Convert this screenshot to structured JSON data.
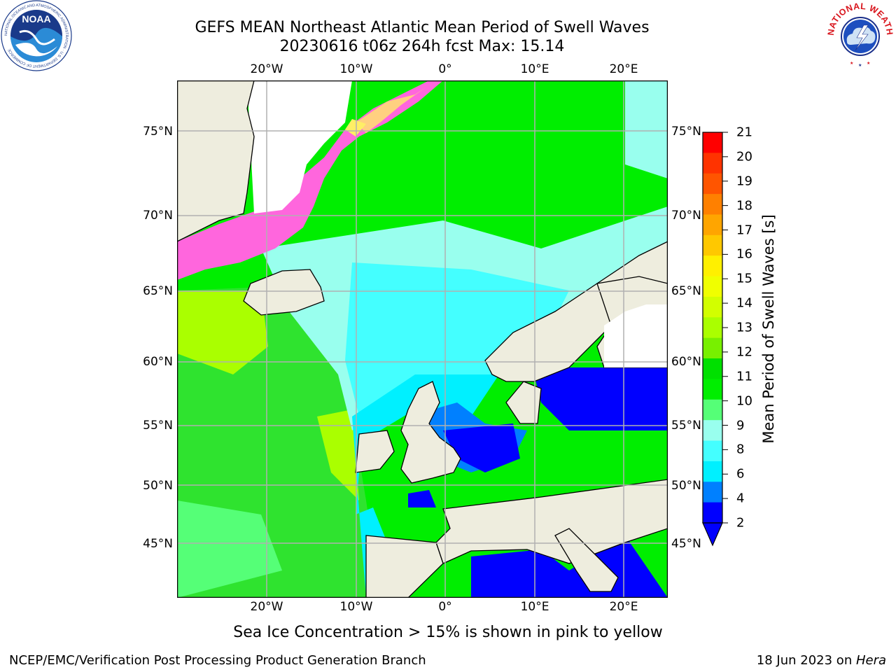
{
  "title": {
    "line1": "GEFS MEAN Northeast Atlantic Mean Period of Swell Waves",
    "line2": "20230616 t06z 264h fcst   Max: 15.14"
  },
  "map": {
    "lon_labels": [
      "20°W",
      "10°W",
      "0°",
      "10°E",
      "20°E"
    ],
    "lat_labels": [
      "75°N",
      "70°N",
      "65°N",
      "60°N",
      "55°N",
      "50°N",
      "45°N"
    ],
    "land_color": "#eeedde",
    "grid_color": "#b0b0b0"
  },
  "colorbar": {
    "title": "Mean Period of Swell Waves [s]",
    "ticks": [
      "21",
      "20",
      "19",
      "18",
      "17",
      "16",
      "15",
      "14",
      "13",
      "12",
      "11",
      "10",
      "9",
      "8",
      "6",
      "4",
      "2"
    ],
    "colors": [
      "#ff0000",
      "#ff3300",
      "#ff5500",
      "#ff8000",
      "#ffa500",
      "#ffc800",
      "#fff000",
      "#f0ff00",
      "#d2ff00",
      "#aaff00",
      "#78f000",
      "#00e000",
      "#00ee00",
      "#55ff77",
      "#99ffee",
      "#44ffff",
      "#00f0ff",
      "#0080ff",
      "#0000ff"
    ]
  },
  "note": "Sea Ice Concentration > 15% is shown in pink to yellow",
  "footer": {
    "left": "NCEP/EMC/Verification Post Processing Product Generation Branch",
    "right_prefix": "18 Jun 2023 on ",
    "right_italic": "Hera"
  },
  "logos": {
    "left": {
      "text": "NOAA",
      "ring_text": "NATIONAL OCEANIC AND ATMOSPHERIC ADMINISTRATION · U.S. DEPARTMENT OF COMMERCE"
    },
    "right": {
      "text": "NATIONAL WEATHER SERVICE"
    }
  }
}
